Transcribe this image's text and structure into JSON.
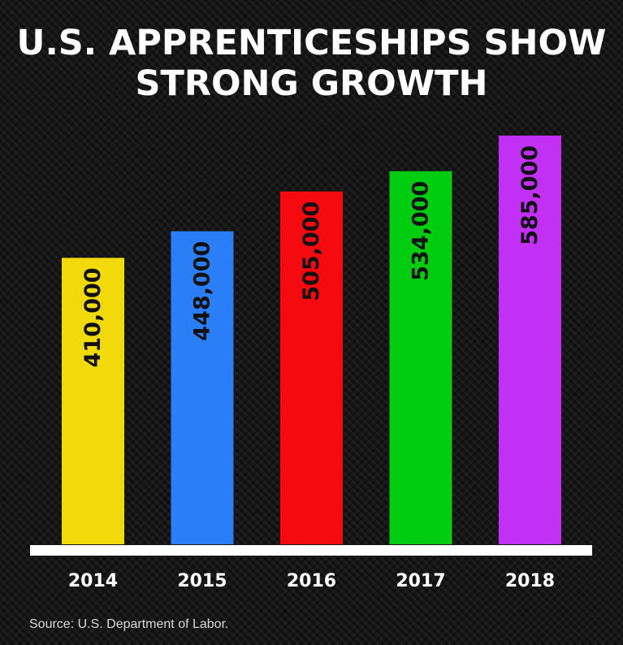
{
  "title_lines": [
    "U.S. APPRENTICESHIPS SHOW",
    "STRONG GROWTH"
  ],
  "source": "Source: U.S. Department of Labor.",
  "chart_data": {
    "type": "bar",
    "title": "U.S. APPRENTICESHIPS SHOW STRONG GROWTH",
    "categories": [
      "2014",
      "2015",
      "2016",
      "2017",
      "2018"
    ],
    "values": [
      410000,
      448000,
      505000,
      534000,
      585000
    ],
    "data_labels": [
      "410,000",
      "448,000",
      "505,000",
      "534,000",
      "585,000"
    ],
    "colors": [
      "#f1d90a",
      "#2a7ff8",
      "#f50a10",
      "#00cc10",
      "#c22ff5"
    ],
    "baseline_color": "#ffffff",
    "xlabel": "",
    "ylabel": "",
    "ylim": [
      0,
      600000
    ],
    "grid": false,
    "legend": "none"
  }
}
